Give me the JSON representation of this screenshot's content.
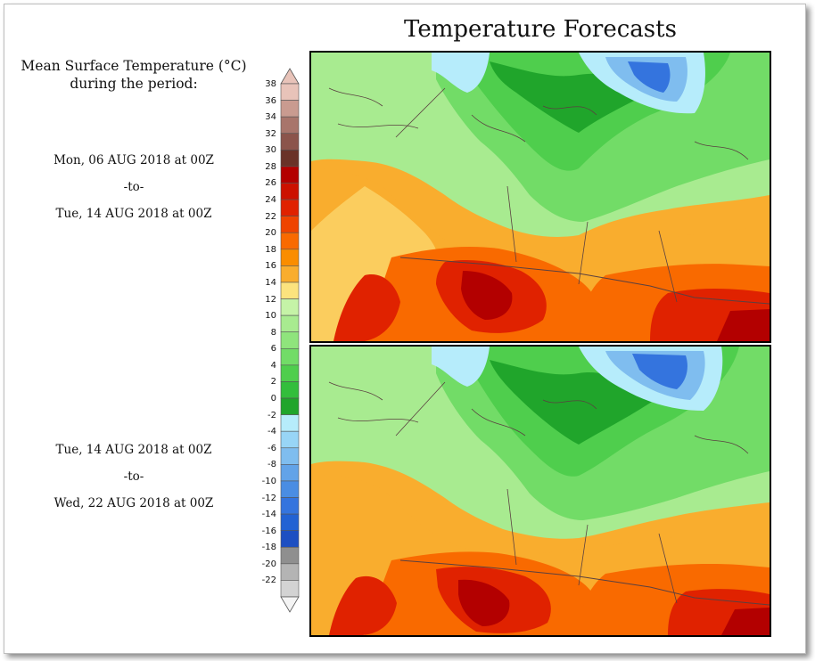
{
  "title": "Temperature Forecasts",
  "legend": {
    "heading": [
      "Mean Surface Temperature (°C)",
      "during the period:"
    ],
    "levels": [
      "38",
      "36",
      "34",
      "32",
      "30",
      "28",
      "26",
      "24",
      "22",
      "20",
      "18",
      "16",
      "14",
      "12",
      "10",
      "8",
      "6",
      "4",
      "2",
      "0",
      "-2",
      "-4",
      "-6",
      "-8",
      "-10",
      "-12",
      "-14",
      "-16",
      "-18",
      "-20",
      "-22"
    ],
    "colors": [
      "#e8c3b9",
      "#c99b90",
      "#a8756b",
      "#8b544b",
      "#6a3228",
      "#b30000",
      "#cc1100",
      "#e02200",
      "#ef4400",
      "#f96a00",
      "#fa8d00",
      "#f9ad2e",
      "#fce37e",
      "#c5f3a7",
      "#a8eb90",
      "#8fe47c",
      "#72dc67",
      "#4fce4d",
      "#33be3c",
      "#20a52b",
      "#b6ecfb",
      "#98d5f6",
      "#7fbdef",
      "#62a3e8",
      "#4a8de3",
      "#3474de",
      "#2262d3",
      "#1d4fc2",
      "#8f8f8f",
      "#b4b4b4",
      "#d3d3d3"
    ]
  },
  "panels": [
    {
      "start": "Mon, 06 AUG 2018 at 00Z",
      "sep": "-to-",
      "end": "Tue, 14 AUG 2018 at 00Z"
    },
    {
      "start": "Tue, 14 AUG 2018 at 00Z",
      "sep": "-to-",
      "end": "Wed, 22 AUG 2018 at 00Z"
    }
  ],
  "map_colors": {
    "land_green": "#4fce4d",
    "dark_green": "#20a52b",
    "light_green": "#a8eb90",
    "pale_yellow": "#fce37e",
    "orange": "#f9ad2e",
    "dark_orange": "#f96a00",
    "red": "#e02200",
    "dark_red": "#b30000",
    "ice_blue": "#b6ecfb",
    "deep_blue": "#3474de",
    "mid_blue": "#7fbdef",
    "boundary": "#5a4040"
  }
}
